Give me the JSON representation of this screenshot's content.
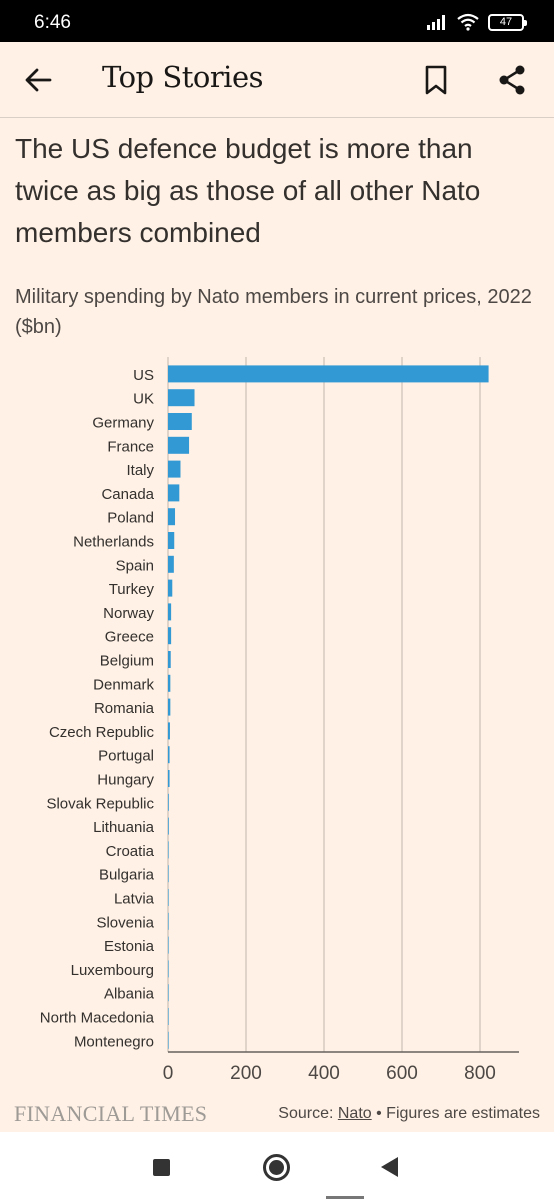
{
  "status_bar": {
    "time": "6:46",
    "battery": "47"
  },
  "header": {
    "title": "Top Stories"
  },
  "article": {
    "headline": "The US defence budget is more than twice as big as those of all other Nato members combined",
    "subtitle": "Military spending by Nato members in current prices, 2022 ($bn)"
  },
  "colors": {
    "bar": "#3399d4",
    "grid": "#ccc1b7",
    "background": "#fff1e5"
  },
  "chart_data": {
    "type": "bar",
    "orientation": "horizontal",
    "categories": [
      "US",
      "UK",
      "Germany",
      "France",
      "Italy",
      "Canada",
      "Poland",
      "Netherlands",
      "Spain",
      "Turkey",
      "Norway",
      "Greece",
      "Belgium",
      "Denmark",
      "Romania",
      "Czech Republic",
      "Portugal",
      "Hungary",
      "Slovak Republic",
      "Lithuania",
      "Croatia",
      "Bulgaria",
      "Latvia",
      "Slovenia",
      "Estonia",
      "Luxembourg",
      "Albania",
      "North Macedonia",
      "Montenegro"
    ],
    "values": [
      822,
      68,
      61,
      54,
      32,
      29,
      18,
      16,
      15,
      11,
      8,
      8,
      7,
      6,
      6,
      5,
      4,
      4,
      2,
      2,
      1.5,
      1.2,
      1,
      0.7,
      0.7,
      0.5,
      0.3,
      0.2,
      0.1
    ],
    "xticks": [
      "0",
      "200",
      "400",
      "600",
      "800"
    ],
    "xlim": [
      0,
      900
    ],
    "grid": true,
    "title": "",
    "xlabel": "",
    "ylabel": ""
  },
  "footer": {
    "logo": "FINANCIAL TIMES",
    "source_prefix": "Source: ",
    "source_link": "Nato",
    "source_suffix": " • Figures are estimates"
  }
}
